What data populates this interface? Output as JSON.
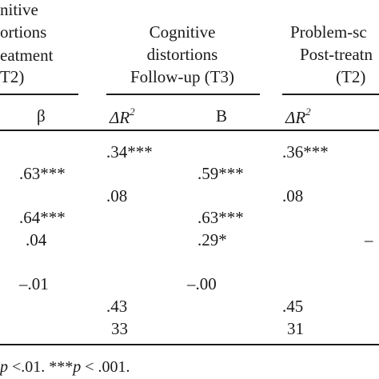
{
  "headers": {
    "col1": [
      "nitive",
      "ortions",
      "eatment",
      "T2)"
    ],
    "col2": [
      "Cognitive",
      "distortions",
      "Follow-up (T3)"
    ],
    "col3": [
      "Problem-sc",
      "Post-treatn",
      "(T2)"
    ]
  },
  "subheaders": {
    "col1_beta": "β",
    "col2_delta": "ΔR",
    "col2_delta_sup": "2",
    "col2_b": "B",
    "col3_delta": "ΔR",
    "col3_delta_sup": "2"
  },
  "rows": {
    "c1": [
      "",
      ".63***",
      "",
      ".64***",
      ".04",
      "",
      "–.01",
      "",
      ""
    ],
    "c2": [
      ".34***",
      "",
      ".08",
      "",
      "",
      "",
      "",
      ".43",
      "33"
    ],
    "c3": [
      "",
      ".59***",
      "",
      ".63***",
      ".29*",
      "",
      "–.00",
      "",
      ""
    ],
    "c4": [
      ".36***",
      "",
      ".08",
      "",
      "",
      "",
      "",
      ".45",
      "31"
    ],
    "c5": [
      "",
      "",
      "",
      "",
      "–",
      "",
      "",
      "",
      ""
    ]
  },
  "footnote": {
    "p1": "p",
    "t1": " <.01. ***",
    "p2": "p",
    "t2": " < .001."
  }
}
